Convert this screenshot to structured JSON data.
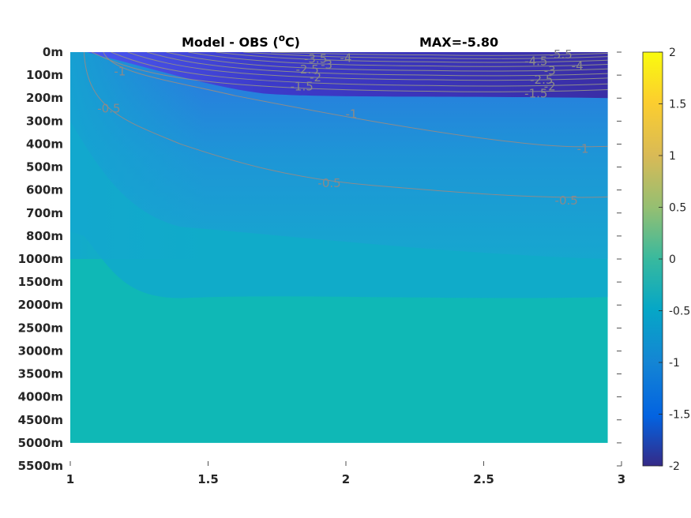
{
  "chart_data": {
    "type": "heatmap",
    "title": "Model - OBS (",
    "title_sup": "o",
    "title_unit": "C)",
    "max_label": "MAX=-5.80",
    "xlim": [
      1,
      3
    ],
    "x_ticks": [
      1,
      1.5,
      2,
      2.5,
      3
    ],
    "x_tick_labels": [
      "1",
      "1.5",
      "2",
      "2.5",
      "3"
    ],
    "y_tick_labels": [
      "0m",
      "100m",
      "200m",
      "300m",
      "400m",
      "500m",
      "600m",
      "700m",
      "800m",
      "1000m",
      "1500m",
      "2000m",
      "2500m",
      "3000m",
      "3500m",
      "4000m",
      "4500m",
      "5000m",
      "5500m"
    ],
    "data_x_extent": [
      1,
      2.95
    ],
    "data_bottom_level": "5000m",
    "colorbar": {
      "colormap": "parula",
      "clim": [
        -2,
        2
      ],
      "ticks": [
        -2,
        -1.5,
        -1,
        -0.5,
        0,
        0.5,
        1,
        1.5,
        2
      ],
      "tick_labels": [
        "-2",
        "-1.5",
        "-1",
        "-0.5",
        "0",
        "0.5",
        "1",
        "1.5",
        "2"
      ]
    },
    "contour_levels": [
      -5.5,
      -5,
      -4.5,
      -4,
      -3.5,
      -3,
      -2.5,
      -2,
      -1.5,
      -1,
      -0.5
    ],
    "contour_labels": [
      {
        "text": "-3.5",
        "x": 1.89,
        "depth_index": 0.3
      },
      {
        "text": "-4",
        "x": 2.0,
        "depth_index": 0.25
      },
      {
        "text": "-3",
        "x": 1.93,
        "depth_index": 0.55
      },
      {
        "text": "-2.5",
        "x": 1.86,
        "depth_index": 0.75
      },
      {
        "text": "-2",
        "x": 1.89,
        "depth_index": 1.1
      },
      {
        "text": "-1.5",
        "x": 1.84,
        "depth_index": 1.5
      },
      {
        "text": "-1",
        "x": 1.18,
        "depth_index": 0.85
      },
      {
        "text": "-0.5",
        "x": 1.14,
        "depth_index": 2.45
      },
      {
        "text": "-1",
        "x": 2.02,
        "depth_index": 2.7
      },
      {
        "text": "-0.5",
        "x": 1.94,
        "depth_index": 5.7
      },
      {
        "text": "-5.5",
        "x": 2.78,
        "depth_index": 0.1
      },
      {
        "text": "-4.5",
        "x": 2.69,
        "depth_index": 0.4
      },
      {
        "text": "-4",
        "x": 2.84,
        "depth_index": 0.6
      },
      {
        "text": "-3",
        "x": 2.74,
        "depth_index": 0.8
      },
      {
        "text": "-2.5",
        "x": 2.71,
        "depth_index": 1.2
      },
      {
        "text": "-2",
        "x": 2.74,
        "depth_index": 1.5
      },
      {
        "text": "-1.5",
        "x": 2.69,
        "depth_index": 1.8
      },
      {
        "text": "-1",
        "x": 2.86,
        "depth_index": 4.2
      },
      {
        "text": "-0.5",
        "x": 2.8,
        "depth_index": 6.45
      }
    ]
  }
}
